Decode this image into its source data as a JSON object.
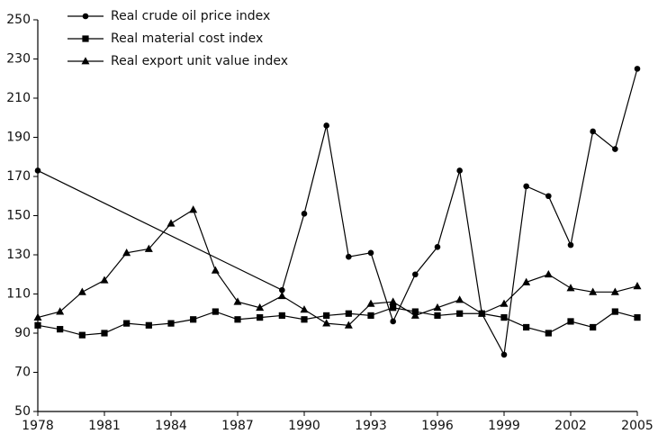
{
  "chart_data": {
    "type": "line",
    "x": [
      1978,
      1979,
      1980,
      1981,
      1982,
      1983,
      1984,
      1985,
      1986,
      1987,
      1988,
      1989,
      1990,
      1991,
      1992,
      1993,
      1994,
      1995,
      1996,
      1997,
      1998,
      1999,
      2000,
      2001,
      2002,
      2003,
      2004,
      2005
    ],
    "series": [
      {
        "name": "Real crude oil price index",
        "color": "#000000",
        "marker": "circle",
        "x": [
          1978,
          1989,
          1990,
          1991,
          1992,
          1993,
          1994,
          1995,
          1996,
          1997,
          1998,
          1999,
          2000,
          2001,
          2002,
          2003,
          2004,
          2005
        ],
        "values": [
          173,
          112,
          151,
          196,
          129,
          131,
          96,
          120,
          134,
          173,
          100,
          79,
          165,
          160,
          135,
          193,
          184,
          225
        ]
      },
      {
        "name": "Real material cost index",
        "color": "#000000",
        "marker": "square",
        "values": [
          94,
          92,
          89,
          90,
          95,
          94,
          95,
          97,
          101,
          97,
          98,
          99,
          97,
          99,
          100,
          99,
          103,
          101,
          99,
          100,
          100,
          98,
          93,
          90,
          96,
          93,
          101,
          98
        ]
      },
      {
        "name": "Real export unit value index",
        "color": "#000000",
        "marker": "triangle",
        "values": [
          98,
          101,
          111,
          117,
          131,
          133,
          146,
          153,
          122,
          106,
          103,
          109,
          102,
          95,
          94,
          105,
          106,
          99,
          103,
          107,
          100,
          105,
          116,
          120,
          113,
          111,
          111,
          114
        ]
      }
    ],
    "xlim": [
      1978,
      2005
    ],
    "xticks": [
      1978,
      1981,
      1984,
      1987,
      1990,
      1993,
      1996,
      1999,
      2002,
      2005
    ],
    "ylim": [
      50,
      250
    ],
    "yticks": [
      50,
      70,
      90,
      110,
      130,
      150,
      170,
      190,
      210,
      230,
      250
    ],
    "legend": "upper left",
    "grid": false
  }
}
